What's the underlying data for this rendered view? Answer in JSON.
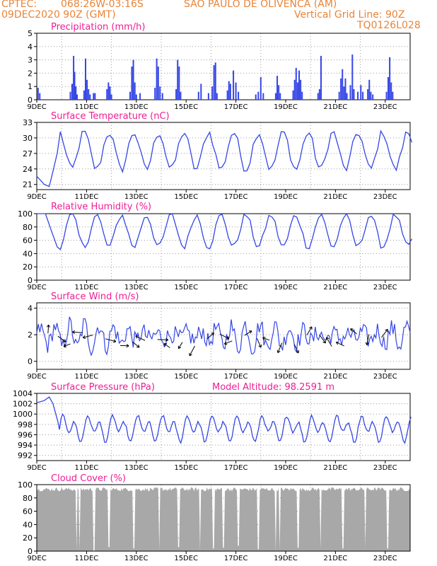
{
  "header": {
    "source": "CPTEC:",
    "coords": "068:26W-03:16S",
    "location": "SAO PAULO DE OLIVENCA (AM)",
    "datetime": "09DEC2020 90Z (GMT)",
    "grid_note": "Vertical Grid Line: 90Z",
    "model_code": "TQ0126L028"
  },
  "colors": {
    "header_text": "#e8853a",
    "panel_title": "#ee1e96",
    "series": "#3546e6",
    "cloud_fill": "#a8a8a8",
    "grid": "#9a9a9a"
  },
  "x_axis": {
    "tick_labels": [
      "9DEC",
      "11DEC",
      "13DEC",
      "15DEC",
      "17DEC",
      "19DEC",
      "21DEC",
      "23DEC"
    ],
    "tick_days": [
      0,
      2,
      4,
      6,
      8,
      10,
      12,
      14
    ],
    "grid_days": [
      1,
      3,
      5,
      7,
      9,
      11,
      13
    ],
    "range_days": [
      0,
      15
    ]
  },
  "chart_data": [
    {
      "type": "bar",
      "title": "Precipitation (mm/h)",
      "ylim": [
        0,
        5
      ],
      "yticks": [
        0,
        1,
        2,
        3,
        4,
        5
      ],
      "events": [
        [
          0.05,
          0.9
        ],
        [
          0.12,
          0.5
        ],
        [
          1.35,
          0.6
        ],
        [
          1.42,
          1.2
        ],
        [
          1.48,
          3.3
        ],
        [
          1.52,
          2.1
        ],
        [
          1.57,
          1.0
        ],
        [
          1.62,
          0.4
        ],
        [
          1.9,
          0.7
        ],
        [
          1.96,
          3.1
        ],
        [
          2.02,
          1.5
        ],
        [
          2.08,
          0.8
        ],
        [
          2.14,
          0.4
        ],
        [
          2.28,
          0.5
        ],
        [
          2.34,
          0.5
        ],
        [
          2.82,
          0.8
        ],
        [
          2.88,
          1.3
        ],
        [
          2.94,
          1.0
        ],
        [
          3.0,
          0.4
        ],
        [
          3.75,
          0.6
        ],
        [
          3.82,
          2.5
        ],
        [
          3.88,
          3.0
        ],
        [
          3.94,
          1.3
        ],
        [
          4.0,
          0.4
        ],
        [
          4.15,
          0.5
        ],
        [
          4.75,
          0.9
        ],
        [
          4.82,
          3.1
        ],
        [
          4.88,
          2.5
        ],
        [
          4.95,
          1.0
        ],
        [
          5.05,
          0.5
        ],
        [
          5.6,
          0.8
        ],
        [
          5.66,
          3.0
        ],
        [
          5.72,
          2.5
        ],
        [
          5.78,
          0.6
        ],
        [
          6.5,
          0.6
        ],
        [
          6.6,
          1.2
        ],
        [
          6.9,
          0.5
        ],
        [
          7.05,
          1.0
        ],
        [
          7.12,
          2.6
        ],
        [
          7.18,
          2.8
        ],
        [
          7.24,
          0.5
        ],
        [
          7.66,
          0.7
        ],
        [
          7.72,
          1.4
        ],
        [
          7.78,
          1.2
        ],
        [
          7.9,
          2.2
        ],
        [
          8.0,
          1.3
        ],
        [
          8.1,
          0.6
        ],
        [
          8.8,
          0.4
        ],
        [
          8.9,
          0.6
        ],
        [
          9.0,
          1.7
        ],
        [
          9.1,
          0.5
        ],
        [
          9.6,
          0.5
        ],
        [
          9.66,
          1.8
        ],
        [
          9.72,
          1.1
        ],
        [
          9.78,
          0.5
        ],
        [
          10.3,
          0.7
        ],
        [
          10.36,
          1.5
        ],
        [
          10.42,
          2.4
        ],
        [
          10.48,
          1.3
        ],
        [
          10.54,
          2.2
        ],
        [
          10.6,
          1.5
        ],
        [
          10.66,
          0.6
        ],
        [
          11.3,
          0.5
        ],
        [
          11.36,
          0.8
        ],
        [
          11.42,
          3.3
        ],
        [
          12.15,
          0.6
        ],
        [
          12.22,
          1.6
        ],
        [
          12.28,
          2.3
        ],
        [
          12.34,
          1.0
        ],
        [
          12.4,
          1.6
        ],
        [
          12.46,
          0.5
        ],
        [
          12.6,
          1.1
        ],
        [
          12.68,
          3.4
        ],
        [
          12.74,
          0.8
        ],
        [
          12.9,
          0.6
        ],
        [
          13.02,
          1.1
        ],
        [
          13.1,
          0.6
        ],
        [
          13.3,
          0.8
        ],
        [
          13.36,
          1.5
        ],
        [
          13.42,
          0.6
        ],
        [
          13.5,
          0.4
        ],
        [
          14.05,
          0.6
        ],
        [
          14.12,
          1.7
        ],
        [
          14.18,
          3.2
        ],
        [
          14.24,
          1.3
        ],
        [
          14.3,
          0.6
        ]
      ]
    },
    {
      "type": "line",
      "title": "Surface Temperature (nC)",
      "ylim": [
        20,
        33
      ],
      "yticks": [
        21,
        24,
        27,
        30,
        33
      ],
      "mean": 27.5,
      "amplitude": 3.6,
      "phase_day": 0.65,
      "start": [
        [
          0,
          22.6
        ],
        [
          0.3,
          21.0
        ],
        [
          0.5,
          20.6
        ],
        [
          0.6,
          22.5
        ],
        [
          0.82,
          27.0
        ]
      ]
    },
    {
      "type": "line",
      "title": "Relative Humidity (%)",
      "ylim": [
        0,
        100
      ],
      "yticks": [
        0,
        20,
        40,
        60,
        80,
        100
      ],
      "mean": 74,
      "amplitude": 24,
      "phase_day": 0.15,
      "start": [
        [
          0,
          100
        ],
        [
          0.35,
          100
        ],
        [
          0.55,
          78
        ],
        [
          0.82,
          50
        ]
      ]
    },
    {
      "type": "line",
      "title": "Surface Wind (m/s)",
      "ylim": [
        -0.6,
        4.4
      ],
      "yticks": [
        0,
        2,
        4
      ],
      "mean": 1.9,
      "amplitude": 0.9,
      "phase_day": 0.4,
      "arrow_days": [
        0.45,
        0.85,
        1.35,
        1.85,
        2.25,
        2.75,
        3.35,
        3.85,
        4.35,
        4.85,
        5.35,
        5.85,
        6.35,
        6.85,
        7.35,
        7.85,
        8.35,
        8.85,
        9.35,
        9.85,
        10.35,
        10.85,
        11.35,
        11.85,
        12.35,
        12.85,
        13.35,
        13.85
      ]
    },
    {
      "type": "line",
      "title": "Surface Pressure (hPa)",
      "annotation": "Model Altitude: 98.2591 m",
      "ylim": [
        991,
        1004
      ],
      "yticks": [
        992,
        994,
        996,
        998,
        1000,
        1002,
        1004
      ],
      "mean": 997.3,
      "amplitude": 2.4,
      "start": [
        [
          0,
          1002.2
        ],
        [
          0.3,
          1002.6
        ],
        [
          0.5,
          1003.3
        ],
        [
          0.65,
          1002.0
        ],
        [
          0.85,
          998.5
        ]
      ]
    },
    {
      "type": "area",
      "title": "Cloud Cover (%)",
      "ylim": [
        0,
        100
      ],
      "yticks": [
        0,
        20,
        40,
        60,
        80,
        100
      ],
      "mean": 93,
      "gaps": [
        [
          1.6,
          3
        ],
        [
          1.72,
          2
        ],
        [
          2.3,
          0
        ],
        [
          2.9,
          6
        ],
        [
          3.9,
          4
        ],
        [
          4.92,
          2
        ],
        [
          5.7,
          6
        ],
        [
          6.55,
          1
        ],
        [
          7.1,
          4
        ],
        [
          7.5,
          5
        ],
        [
          8.1,
          8
        ],
        [
          8.9,
          3
        ],
        [
          9.6,
          0
        ],
        [
          9.75,
          2
        ],
        [
          10.5,
          5
        ],
        [
          11.4,
          3
        ],
        [
          12.3,
          4
        ],
        [
          13.2,
          6
        ],
        [
          14.1,
          4
        ]
      ]
    }
  ]
}
